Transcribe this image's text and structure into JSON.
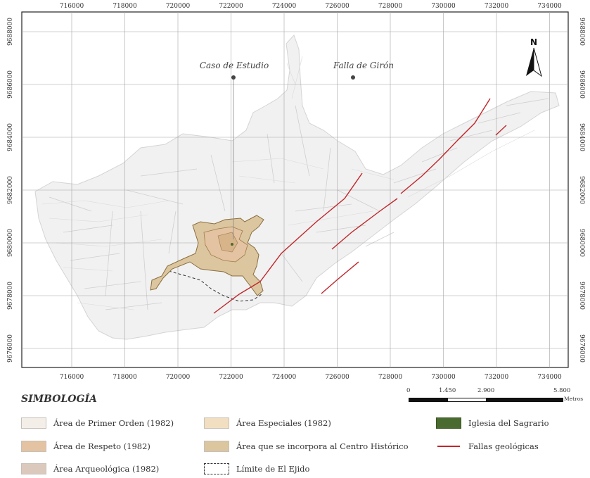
{
  "map": {
    "x_ticks": [
      "716000",
      "718000",
      "720000",
      "722000",
      "724000",
      "726000",
      "728000",
      "730000",
      "732000",
      "734000"
    ],
    "y_ticks": [
      "9688000",
      "9686000",
      "9684000",
      "9682000",
      "9680000",
      "9678000",
      "9676000"
    ],
    "labels": {
      "caso_estudio": "Caso de Estudio",
      "falla_giron": "Falla de Girón"
    },
    "north_label": "N",
    "colors": {
      "fault": "#c0262b",
      "streets": "#c9c9c9",
      "centro_historico": "#dcc6a0",
      "area_respeto": "#e3c3a1",
      "grid": "#9a9a9a"
    }
  },
  "scale_bar": {
    "labels": [
      "0",
      "1.450",
      "2.900",
      "5.800"
    ],
    "unit": "Metros"
  },
  "legend": {
    "title": "SIMBOLOGÍA",
    "items": [
      {
        "label": "Área de Primer Orden (1982)",
        "color": "#f3eee8"
      },
      {
        "label": "Área de Respeto (1982)",
        "color": "#e3c3a1"
      },
      {
        "label": "Área Arqueológica (1982)",
        "color": "#dcc9bd"
      },
      {
        "label": "Área Especiales (1982)",
        "color": "#f2dfc2"
      },
      {
        "label": "Área que se incorpora al Centro Histórico",
        "color": "#dcc6a0"
      },
      {
        "label": "Límite de El Ejido",
        "color": "#333333"
      },
      {
        "label": "Iglesia del Sagrario",
        "color": "#4a6b30"
      },
      {
        "label": "Fallas geológicas",
        "color": "#c0262b"
      }
    ]
  }
}
